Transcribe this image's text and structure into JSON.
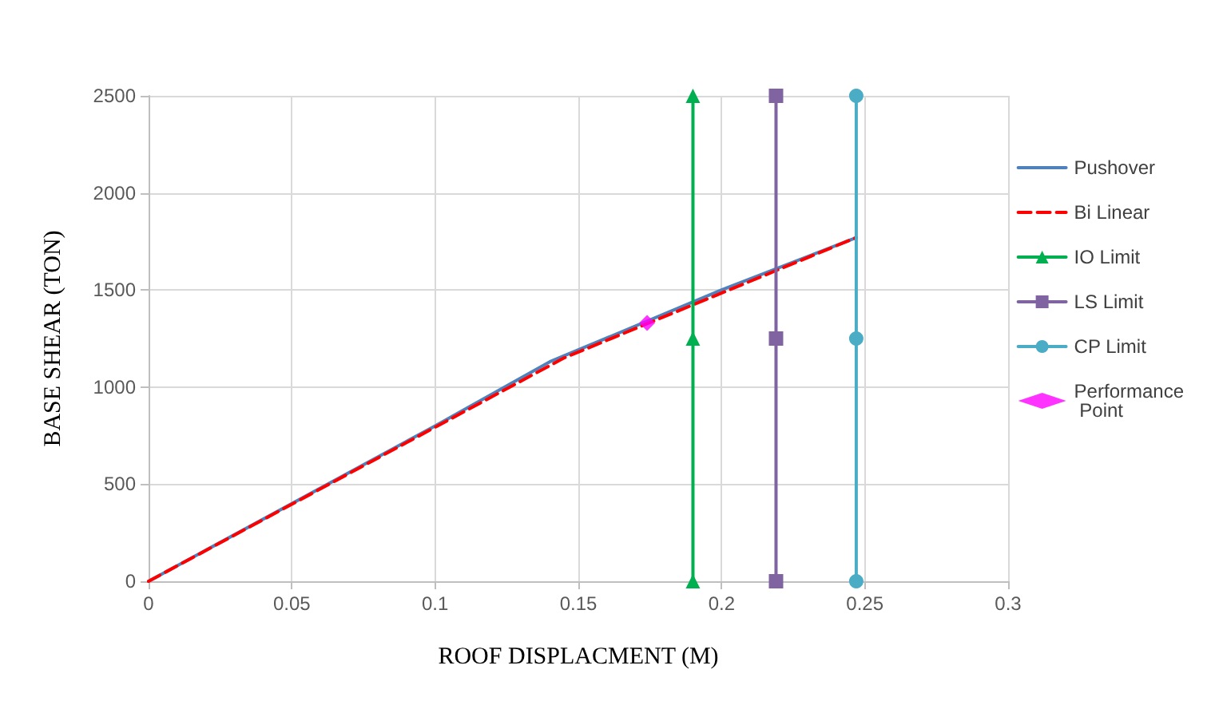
{
  "chart_data": {
    "type": "line",
    "xlabel": "ROOF DISPLACMENT (M)",
    "ylabel": "BASE SHEAR (TON)",
    "xlim": [
      0,
      0.3
    ],
    "xticks": [
      0,
      0.05,
      0.1,
      0.15,
      0.2,
      0.25,
      0.3
    ],
    "ylim": [
      0,
      2500
    ],
    "yticks": [
      0,
      500,
      1000,
      1500,
      2000,
      2500
    ],
    "grid": true,
    "legend": "right",
    "series": [
      {
        "name": "Pushover",
        "color": "#4f81bd",
        "x": [
          0,
          0.1,
          0.14,
          0.2,
          0.247
        ],
        "values": [
          0,
          800,
          1130,
          1500,
          1770
        ],
        "marker": "none",
        "line_style": "solid"
      },
      {
        "name": "Bi Linear",
        "color": "#ff0000",
        "x": [
          0,
          0.145,
          0.247
        ],
        "values": [
          0,
          1150,
          1770
        ],
        "marker": "none",
        "line_style": "dashed"
      },
      {
        "name": "IO Limit",
        "color": "#00b050",
        "x": [
          0.19,
          0.19,
          0.19
        ],
        "values": [
          0,
          1250,
          2500
        ],
        "marker": "triangle",
        "line_style": "solid"
      },
      {
        "name": "LS Limit",
        "color": "#8064a2",
        "x": [
          0.219,
          0.219,
          0.219
        ],
        "values": [
          0,
          1250,
          2500
        ],
        "marker": "square",
        "line_style": "solid"
      },
      {
        "name": "CP Limit",
        "color": "#4bacc6",
        "x": [
          0.247,
          0.247,
          0.247
        ],
        "values": [
          0,
          1250,
          2500
        ],
        "marker": "circle",
        "line_style": "solid"
      },
      {
        "name": "Performance Point",
        "type": "scatter",
        "color": "#ff00ff",
        "x": [
          0.174
        ],
        "values": [
          1330
        ],
        "marker": "diamond"
      }
    ]
  }
}
